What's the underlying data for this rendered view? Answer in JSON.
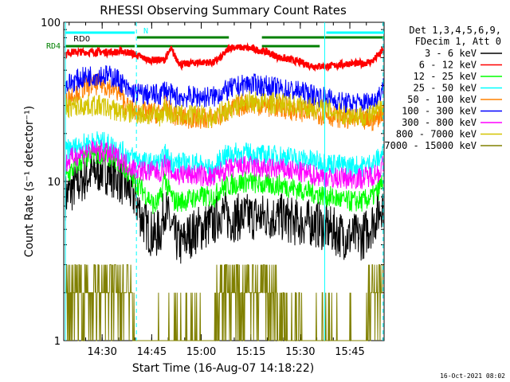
{
  "chart_data": {
    "type": "line",
    "title": "RHESSI Observing Summary Count Rates",
    "xlabel": "Start Time (16-Aug-07 14:18:22)",
    "ylabel": "Count Rate (s⁻¹ detector⁻¹)",
    "ylog": true,
    "ylim": [
      1,
      100
    ],
    "xlim_minutes": [
      14.5,
      111.5
    ],
    "y_tick_labels": [
      "1",
      "10",
      "100"
    ],
    "x_tick_labels": [
      "14:30",
      "14:45",
      "15:00",
      "15:15",
      "15:30",
      "15:45"
    ],
    "legend_header": [
      "Det 1,3,4,5,6,9,",
      "FDecim 1, Att 0"
    ],
    "legend_placement": "right",
    "grid": false,
    "footer": "16-Oct-2021 08:02",
    "flags": [
      {
        "label": "RD0",
        "color": "#00ffff",
        "level": 95
      },
      {
        "label": "N",
        "color": "#00ffff",
        "level": 96
      },
      {
        "label": "RD4",
        "color": "#008000",
        "level": 85
      }
    ],
    "series": [
      {
        "name": "3 - 6 keV",
        "color": "#000000",
        "x": [
          15,
          18,
          22,
          26,
          30,
          33,
          36,
          38,
          40,
          42,
          44,
          45,
          46,
          48,
          50,
          52,
          55,
          60,
          62,
          65,
          68,
          72,
          75,
          80,
          85,
          90,
          95,
          100,
          105,
          108,
          110,
          111
        ],
        "y": [
          8,
          9.5,
          11,
          12,
          11,
          9.5,
          8,
          6,
          5,
          4.5,
          5,
          7,
          6,
          4.5,
          4,
          4.5,
          5,
          5.5,
          6.5,
          5.8,
          6,
          6,
          6,
          6,
          5.5,
          5.5,
          5,
          4.5,
          4.5,
          5.5,
          6.5,
          7.5
        ]
      },
      {
        "name": "6 - 12 keV",
        "color": "#ff0000",
        "x": [
          15,
          16,
          17,
          18,
          20,
          22,
          25,
          28,
          30,
          31,
          32,
          35,
          40,
          45,
          47,
          48,
          50,
          55,
          60,
          62,
          65,
          70,
          75,
          80,
          85,
          90,
          95,
          100,
          105,
          108,
          110,
          111
        ],
        "y": [
          62,
          65,
          65,
          65,
          65,
          65,
          65,
          65,
          65,
          65,
          66,
          64,
          58,
          58,
          68,
          62,
          54,
          56,
          56,
          60,
          70,
          69,
          66,
          60,
          57,
          53,
          53,
          55,
          55,
          57,
          63,
          66
        ]
      },
      {
        "name": "12 - 25 keV",
        "color": "#00ff00",
        "x": [
          15,
          18,
          22,
          26,
          30,
          33,
          36,
          38,
          40,
          42,
          44,
          45,
          46,
          48,
          50,
          55,
          60,
          62,
          65,
          70,
          75,
          80,
          85,
          90,
          95,
          100,
          105,
          108,
          110,
          111
        ],
        "y": [
          10.5,
          12.5,
          14.5,
          15,
          14,
          12,
          10,
          9,
          8,
          7,
          8,
          11,
          9,
          7.5,
          7.5,
          8,
          8,
          9,
          9.5,
          10,
          9.5,
          9.5,
          9,
          8.5,
          8,
          7.5,
          7.5,
          8,
          9,
          10
        ]
      },
      {
        "name": "25 - 50 keV",
        "color": "#00ffff",
        "x": [
          15,
          20,
          25,
          30,
          33,
          36,
          40,
          44,
          45,
          46,
          48,
          50,
          55,
          60,
          62,
          65,
          70,
          75,
          80,
          85,
          90,
          95,
          100,
          105,
          108,
          110,
          111
        ],
        "y": [
          15.5,
          17,
          18,
          16.5,
          15,
          14,
          13,
          13,
          15,
          14,
          13,
          13,
          13,
          11.5,
          14,
          15,
          15,
          14.5,
          14.5,
          14,
          13.5,
          13,
          12.5,
          12.5,
          13,
          14,
          15
        ]
      },
      {
        "name": "50 - 100 keV",
        "color": "#ff8000",
        "x": [
          15,
          18,
          22,
          26,
          30,
          32,
          33,
          34,
          36,
          40,
          44,
          45,
          46,
          48,
          50,
          55,
          60,
          62,
          65,
          70,
          75,
          80,
          85,
          90,
          95,
          100,
          105,
          108,
          110,
          111
        ],
        "y": [
          33,
          36,
          40,
          41,
          38,
          35,
          31,
          29,
          28,
          27,
          27,
          30,
          28,
          26,
          25,
          25,
          25,
          26,
          28,
          31,
          30,
          29,
          28,
          27,
          26,
          25,
          24,
          24,
          26,
          28
        ]
      },
      {
        "name": "100 - 300 keV",
        "color": "#0000ff",
        "x": [
          15,
          18,
          22,
          26,
          30,
          32,
          33,
          34,
          36,
          40,
          44,
          45,
          46,
          48,
          50,
          55,
          60,
          62,
          65,
          70,
          75,
          80,
          85,
          90,
          95,
          100,
          105,
          108,
          110,
          111
        ],
        "y": [
          40,
          43,
          46,
          47,
          45,
          42,
          39,
          37,
          36,
          35,
          35,
          39,
          36,
          34,
          34,
          34,
          34,
          36,
          38,
          41,
          40,
          38,
          37,
          35,
          33,
          31,
          31,
          32,
          35,
          39
        ]
      },
      {
        "name": "300 - 800 keV",
        "color": "#ff00ff",
        "x": [
          15,
          18,
          22,
          26,
          30,
          33,
          36,
          40,
          44,
          45,
          46,
          48,
          50,
          55,
          60,
          62,
          65,
          70,
          75,
          80,
          85,
          90,
          95,
          100,
          105,
          108,
          110,
          111
        ],
        "y": [
          13,
          14.5,
          15.5,
          15.5,
          14.5,
          13,
          12,
          11.5,
          11.5,
          13,
          12,
          11,
          11,
          11,
          10.5,
          11.5,
          12,
          12.5,
          12,
          12,
          11.5,
          11,
          10.5,
          10.5,
          10.5,
          11,
          11.5,
          12.5
        ]
      },
      {
        "name": "800 - 7000 keV",
        "color": "#d4c400",
        "x": [
          15,
          20,
          25,
          30,
          33,
          36,
          40,
          44,
          45,
          46,
          48,
          50,
          55,
          60,
          62,
          65,
          70,
          75,
          80,
          85,
          90,
          95,
          100,
          105,
          108,
          110,
          111
        ],
        "y": [
          29,
          30,
          30,
          28,
          27,
          27,
          26,
          26,
          29,
          27,
          26,
          26,
          26,
          25,
          27,
          29,
          32,
          31,
          31,
          30,
          29,
          28,
          26,
          26,
          26,
          28,
          29
        ]
      },
      {
        "name": "7000 - 15000 keV",
        "color": "#808000",
        "x": [
          15,
          20,
          25,
          28,
          32,
          34,
          36,
          40,
          45,
          50,
          55,
          60,
          62,
          66,
          70,
          74,
          76,
          80,
          85,
          90,
          95,
          100,
          105,
          108,
          110,
          111
        ],
        "y": [
          2,
          2.5,
          3,
          2.5,
          2,
          1.6,
          1,
          1,
          1,
          1,
          1,
          1,
          1.8,
          2,
          2,
          2,
          1.6,
          1.1,
          1,
          1,
          1,
          1,
          1,
          1.4,
          2,
          1.8
        ]
      }
    ]
  }
}
